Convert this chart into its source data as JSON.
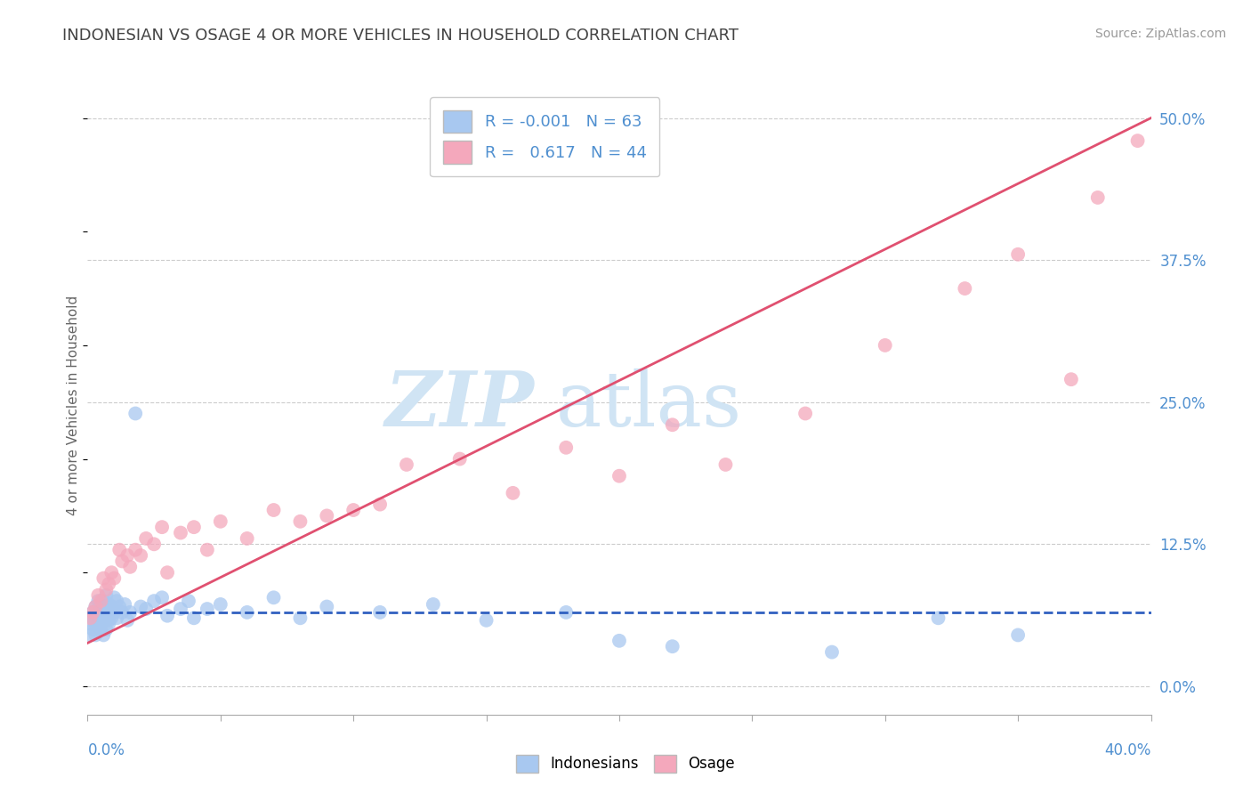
{
  "title": "INDONESIAN VS OSAGE 4 OR MORE VEHICLES IN HOUSEHOLD CORRELATION CHART",
  "source": "Source: ZipAtlas.com",
  "ylabel": "4 or more Vehicles in Household",
  "legend_indonesians": "Indonesians",
  "legend_osage": "Osage",
  "r_indonesians": "-0.001",
  "n_indonesians": "63",
  "r_osage": "0.617",
  "n_osage": "44",
  "blue_color": "#A8C8F0",
  "pink_color": "#F4A8BC",
  "blue_line_color": "#3060C0",
  "pink_line_color": "#E05070",
  "watermark_color": "#D0E4F4",
  "title_color": "#444444",
  "grid_color": "#CCCCCC",
  "label_color": "#5090D0",
  "xlim": [
    0.0,
    0.4
  ],
  "ylim": [
    -0.025,
    0.52
  ],
  "ytick_vals": [
    0.0,
    0.125,
    0.25,
    0.375,
    0.5
  ],
  "ytick_labels": [
    "0.0%",
    "12.5%",
    "25.0%",
    "37.5%",
    "50.0%"
  ],
  "ind_trendline_y": 0.065,
  "osage_trendline": [
    0.038,
    0.5
  ],
  "indonesians_x": [
    0.001,
    0.001,
    0.002,
    0.002,
    0.002,
    0.003,
    0.003,
    0.003,
    0.004,
    0.004,
    0.004,
    0.004,
    0.005,
    0.005,
    0.005,
    0.005,
    0.006,
    0.006,
    0.006,
    0.006,
    0.007,
    0.007,
    0.007,
    0.007,
    0.008,
    0.008,
    0.008,
    0.008,
    0.009,
    0.009,
    0.01,
    0.01,
    0.011,
    0.011,
    0.012,
    0.013,
    0.014,
    0.015,
    0.016,
    0.018,
    0.02,
    0.022,
    0.025,
    0.028,
    0.03,
    0.035,
    0.038,
    0.04,
    0.045,
    0.05,
    0.06,
    0.07,
    0.08,
    0.09,
    0.11,
    0.13,
    0.15,
    0.18,
    0.2,
    0.22,
    0.28,
    0.32,
    0.35
  ],
  "indonesians_y": [
    0.045,
    0.055,
    0.06,
    0.05,
    0.065,
    0.055,
    0.07,
    0.045,
    0.06,
    0.055,
    0.065,
    0.075,
    0.05,
    0.06,
    0.055,
    0.07,
    0.045,
    0.058,
    0.065,
    0.075,
    0.05,
    0.06,
    0.07,
    0.08,
    0.055,
    0.065,
    0.058,
    0.072,
    0.06,
    0.07,
    0.065,
    0.078,
    0.06,
    0.075,
    0.07,
    0.065,
    0.072,
    0.058,
    0.065,
    0.24,
    0.07,
    0.068,
    0.075,
    0.078,
    0.062,
    0.068,
    0.075,
    0.06,
    0.068,
    0.072,
    0.065,
    0.078,
    0.06,
    0.07,
    0.065,
    0.072,
    0.058,
    0.065,
    0.04,
    0.035,
    0.03,
    0.06,
    0.045
  ],
  "osage_x": [
    0.001,
    0.002,
    0.003,
    0.004,
    0.005,
    0.006,
    0.007,
    0.008,
    0.009,
    0.01,
    0.012,
    0.013,
    0.015,
    0.016,
    0.018,
    0.02,
    0.022,
    0.025,
    0.028,
    0.03,
    0.035,
    0.04,
    0.045,
    0.05,
    0.06,
    0.07,
    0.08,
    0.09,
    0.1,
    0.11,
    0.12,
    0.14,
    0.16,
    0.18,
    0.2,
    0.22,
    0.24,
    0.27,
    0.3,
    0.33,
    0.35,
    0.37,
    0.38,
    0.395
  ],
  "osage_y": [
    0.06,
    0.065,
    0.07,
    0.08,
    0.075,
    0.095,
    0.085,
    0.09,
    0.1,
    0.095,
    0.12,
    0.11,
    0.115,
    0.105,
    0.12,
    0.115,
    0.13,
    0.125,
    0.14,
    0.1,
    0.135,
    0.14,
    0.12,
    0.145,
    0.13,
    0.155,
    0.145,
    0.15,
    0.155,
    0.16,
    0.195,
    0.2,
    0.17,
    0.21,
    0.185,
    0.23,
    0.195,
    0.24,
    0.3,
    0.35,
    0.38,
    0.27,
    0.43,
    0.48
  ]
}
